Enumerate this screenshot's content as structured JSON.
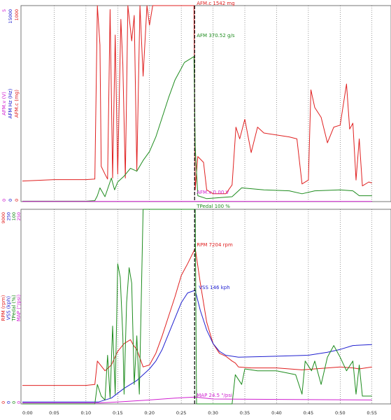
{
  "colors": {
    "afm_mg": "#e02020",
    "afm_gs": "#1e8c1e",
    "afm_v": "#d020d0",
    "afm_hz": "#2020d0",
    "rpm": "#e02020",
    "vss": "#2020d0",
    "tpedal": "#1e8c1e",
    "map": "#d020d0",
    "grid": "#555555",
    "cursor": "#000000"
  },
  "chart_data": [
    {
      "type": "line",
      "panel": "top",
      "axis_labels": [
        "AFM.v (V)",
        "AFM Hz (Hz)",
        "AFM.c (mg)"
      ],
      "axis_ticks": {
        "AFM.v (V)": [
          "5",
          "0"
        ],
        "AFM Hz (Hz)": [
          "15000",
          "0"
        ],
        "AFM.c (mg)": [
          "1000",
          "0"
        ]
      },
      "ylim": [
        0,
        1000
      ],
      "grid": "vertical dotted",
      "cursor_time": 0.271,
      "cursor_labels": {
        "top": "AFM.c 1542 mg",
        "afm_gs": "AFM 370.52 g/s",
        "afm_v": "AFM.v 0.00 V"
      },
      "series": [
        {
          "key": "afm_mg",
          "values": [
            [
              0,
              105
            ],
            [
              0.05,
              112
            ],
            [
              0.1,
              112
            ],
            [
              0.114,
              115
            ],
            [
              0.118,
              1000
            ],
            [
              0.122,
              800
            ],
            [
              0.124,
              180
            ],
            [
              0.13,
              140
            ],
            [
              0.134,
              115
            ],
            [
              0.138,
              980
            ],
            [
              0.142,
              120
            ],
            [
              0.146,
              850
            ],
            [
              0.15,
              140
            ],
            [
              0.155,
              930
            ],
            [
              0.158,
              700
            ],
            [
              0.162,
              120
            ],
            [
              0.166,
              1000
            ],
            [
              0.172,
              820
            ],
            [
              0.176,
              950
            ],
            [
              0.18,
              160
            ],
            [
              0.185,
              1000
            ],
            [
              0.19,
              640
            ],
            [
              0.196,
              1000
            ],
            [
              0.2,
              900
            ],
            [
              0.205,
              1000
            ],
            [
              0.27,
              1000
            ],
            [
              0.272,
              60
            ],
            [
              0.276,
              230
            ],
            [
              0.285,
              200
            ],
            [
              0.29,
              60
            ],
            [
              0.3,
              40
            ],
            [
              0.32,
              40
            ],
            [
              0.33,
              85
            ],
            [
              0.336,
              380
            ],
            [
              0.342,
              320
            ],
            [
              0.35,
              420
            ],
            [
              0.36,
              250
            ],
            [
              0.37,
              380
            ],
            [
              0.38,
              350
            ],
            [
              0.42,
              330
            ],
            [
              0.432,
              320
            ],
            [
              0.44,
              90
            ],
            [
              0.45,
              110
            ],
            [
              0.454,
              570
            ],
            [
              0.46,
              480
            ],
            [
              0.47,
              430
            ],
            [
              0.48,
              300
            ],
            [
              0.49,
              380
            ],
            [
              0.5,
              390
            ],
            [
              0.51,
              600
            ],
            [
              0.515,
              370
            ],
            [
              0.52,
              400
            ],
            [
              0.525,
              110
            ],
            [
              0.53,
              320
            ],
            [
              0.535,
              80
            ],
            [
              0.545,
              100
            ],
            [
              0.55,
              95
            ]
          ]
        },
        {
          "key": "afm_gs",
          "values": [
            [
              0,
              2
            ],
            [
              0.1,
              2
            ],
            [
              0.114,
              5
            ],
            [
              0.118,
              30
            ],
            [
              0.122,
              70
            ],
            [
              0.13,
              25
            ],
            [
              0.14,
              120
            ],
            [
              0.145,
              60
            ],
            [
              0.15,
              100
            ],
            [
              0.16,
              130
            ],
            [
              0.17,
              170
            ],
            [
              0.18,
              155
            ],
            [
              0.19,
              210
            ],
            [
              0.2,
              255
            ],
            [
              0.21,
              330
            ],
            [
              0.22,
              430
            ],
            [
              0.23,
              530
            ],
            [
              0.24,
              620
            ],
            [
              0.255,
              710
            ],
            [
              0.27,
              740
            ],
            [
              0.272,
              280
            ],
            [
              0.276,
              30
            ],
            [
              0.29,
              15
            ],
            [
              0.33,
              25
            ],
            [
              0.345,
              70
            ],
            [
              0.38,
              60
            ],
            [
              0.42,
              55
            ],
            [
              0.44,
              40
            ],
            [
              0.46,
              55
            ],
            [
              0.5,
              60
            ],
            [
              0.52,
              55
            ],
            [
              0.53,
              30
            ],
            [
              0.55,
              30
            ]
          ]
        },
        {
          "key": "afm_v",
          "values": [
            [
              0,
              1
            ],
            [
              0.55,
              1
            ]
          ]
        }
      ]
    },
    {
      "type": "line",
      "panel": "bottom",
      "axis_labels": [
        "RPM (rpm)",
        "VSS (kph)",
        "TPedal (%)",
        "MAP (\"/psi)"
      ],
      "axis_ticks": {
        "RPM (rpm)": [
          "9000",
          "0"
        ],
        "VSS (kph)": [
          "250",
          "0"
        ],
        "TPedal (%)": [
          "100",
          "0"
        ],
        "MAP (\"/psi)": [
          "250",
          "0"
        ]
      },
      "ylim": [
        0,
        100
      ],
      "grid": "vertical dotted",
      "cursor_time": 0.271,
      "cursor_labels": {
        "tpedal": "TPedal 100 %",
        "rpm": "RPM 7204 rpm",
        "vss": "VSS 146 kph",
        "map": "MAP 24.5 \"/psi"
      },
      "series": [
        {
          "key": "rpm",
          "values": [
            [
              0,
              9.5
            ],
            [
              0.1,
              9.5
            ],
            [
              0.114,
              10
            ],
            [
              0.118,
              22
            ],
            [
              0.13,
              17
            ],
            [
              0.14,
              20
            ],
            [
              0.15,
              27
            ],
            [
              0.16,
              31
            ],
            [
              0.17,
              33
            ],
            [
              0.175,
              30
            ],
            [
              0.18,
              28
            ],
            [
              0.19,
              19
            ],
            [
              0.2,
              20
            ],
            [
              0.21,
              26
            ],
            [
              0.22,
              35
            ],
            [
              0.23,
              45
            ],
            [
              0.24,
              55
            ],
            [
              0.25,
              66
            ],
            [
              0.26,
              72
            ],
            [
              0.272,
              80
            ],
            [
              0.28,
              62
            ],
            [
              0.29,
              42
            ],
            [
              0.3,
              31
            ],
            [
              0.31,
              26
            ],
            [
              0.32,
              24.5
            ],
            [
              0.33,
              22
            ],
            [
              0.335,
              21
            ],
            [
              0.34,
              19
            ],
            [
              0.36,
              18.5
            ],
            [
              0.4,
              18.5
            ],
            [
              0.44,
              17.5
            ],
            [
              0.46,
              18
            ],
            [
              0.5,
              19
            ],
            [
              0.52,
              18.5
            ],
            [
              0.53,
              18
            ],
            [
              0.55,
              19
            ]
          ]
        },
        {
          "key": "vss",
          "values": [
            [
              0,
              1
            ],
            [
              0.12,
              1
            ],
            [
              0.14,
              3
            ],
            [
              0.16,
              8
            ],
            [
              0.18,
              12
            ],
            [
              0.2,
              18
            ],
            [
              0.21,
              22
            ],
            [
              0.22,
              28
            ],
            [
              0.23,
              36
            ],
            [
              0.24,
              44
            ],
            [
              0.25,
              52
            ],
            [
              0.26,
              57
            ],
            [
              0.272,
              58.4
            ],
            [
              0.28,
              48
            ],
            [
              0.29,
              38
            ],
            [
              0.3,
              31
            ],
            [
              0.31,
              27
            ],
            [
              0.32,
              25
            ],
            [
              0.34,
              24
            ],
            [
              0.4,
              24.5
            ],
            [
              0.45,
              25
            ],
            [
              0.48,
              26.5
            ],
            [
              0.5,
              28
            ],
            [
              0.52,
              30
            ],
            [
              0.55,
              30.5
            ]
          ]
        },
        {
          "key": "tpedal",
          "values": [
            [
              0,
              0
            ],
            [
              0.114,
              0
            ],
            [
              0.118,
              10
            ],
            [
              0.124,
              4
            ],
            [
              0.13,
              2
            ],
            [
              0.134,
              25
            ],
            [
              0.138,
              3
            ],
            [
              0.142,
              40
            ],
            [
              0.146,
              5
            ],
            [
              0.15,
              72
            ],
            [
              0.154,
              65
            ],
            [
              0.158,
              35
            ],
            [
              0.16,
              5
            ],
            [
              0.164,
              52
            ],
            [
              0.168,
              70
            ],
            [
              0.172,
              62
            ],
            [
              0.176,
              10
            ],
            [
              0.18,
              35
            ],
            [
              0.184,
              5
            ],
            [
              0.19,
              100
            ],
            [
              0.2,
              100
            ],
            [
              0.26,
              100
            ],
            [
              0.272,
              100
            ],
            [
              0.274,
              0
            ],
            [
              0.33,
              0
            ],
            [
              0.335,
              15
            ],
            [
              0.345,
              10
            ],
            [
              0.35,
              18
            ],
            [
              0.37,
              17
            ],
            [
              0.4,
              17
            ],
            [
              0.43,
              15
            ],
            [
              0.44,
              5
            ],
            [
              0.445,
              22
            ],
            [
              0.455,
              17
            ],
            [
              0.46,
              22
            ],
            [
              0.47,
              10
            ],
            [
              0.48,
              24
            ],
            [
              0.49,
              30
            ],
            [
              0.5,
              24
            ],
            [
              0.51,
              17
            ],
            [
              0.52,
              22
            ],
            [
              0.525,
              5
            ],
            [
              0.53,
              20
            ],
            [
              0.535,
              4
            ],
            [
              0.55,
              4
            ]
          ]
        },
        {
          "key": "map",
          "values": [
            [
              0,
              0.5
            ],
            [
              0.12,
              0.5
            ],
            [
              0.15,
              1
            ],
            [
              0.2,
              2
            ],
            [
              0.24,
              3
            ],
            [
              0.272,
              3.5
            ],
            [
              0.3,
              2.5
            ],
            [
              0.55,
              2
            ]
          ]
        }
      ]
    }
  ],
  "x_axis": {
    "ticks": [
      "0:00",
      "0:05",
      "0:10",
      "0:15",
      "0:20",
      "0:25",
      "0:30",
      "0:35",
      "0:40",
      "0:45",
      "0:50",
      "0:55"
    ]
  }
}
